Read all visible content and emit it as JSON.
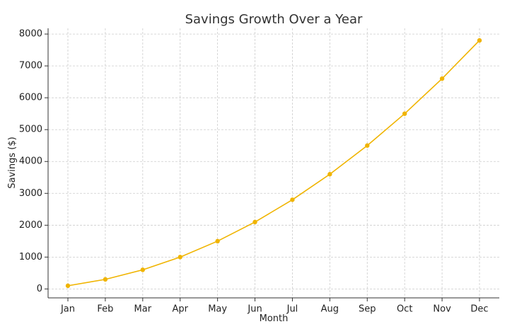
{
  "chart_data": {
    "type": "line",
    "title": "Savings Growth Over a Year",
    "xlabel": "Month",
    "ylabel": "Savings ($)",
    "categories": [
      "Jan",
      "Feb",
      "Mar",
      "Apr",
      "May",
      "Jun",
      "Jul",
      "Aug",
      "Sep",
      "Oct",
      "Nov",
      "Dec"
    ],
    "series": [
      {
        "values": [
          100,
          300,
          600,
          1000,
          1500,
          2100,
          2800,
          3600,
          4500,
          5500,
          6600,
          7800
        ],
        "color": "#f0b400",
        "marker": "circle"
      }
    ],
    "yticks": [
      0,
      1000,
      2000,
      3000,
      4000,
      5000,
      6000,
      7000,
      8000
    ],
    "ylim": [
      -280,
      8180
    ],
    "grid": true,
    "legend": "none"
  }
}
